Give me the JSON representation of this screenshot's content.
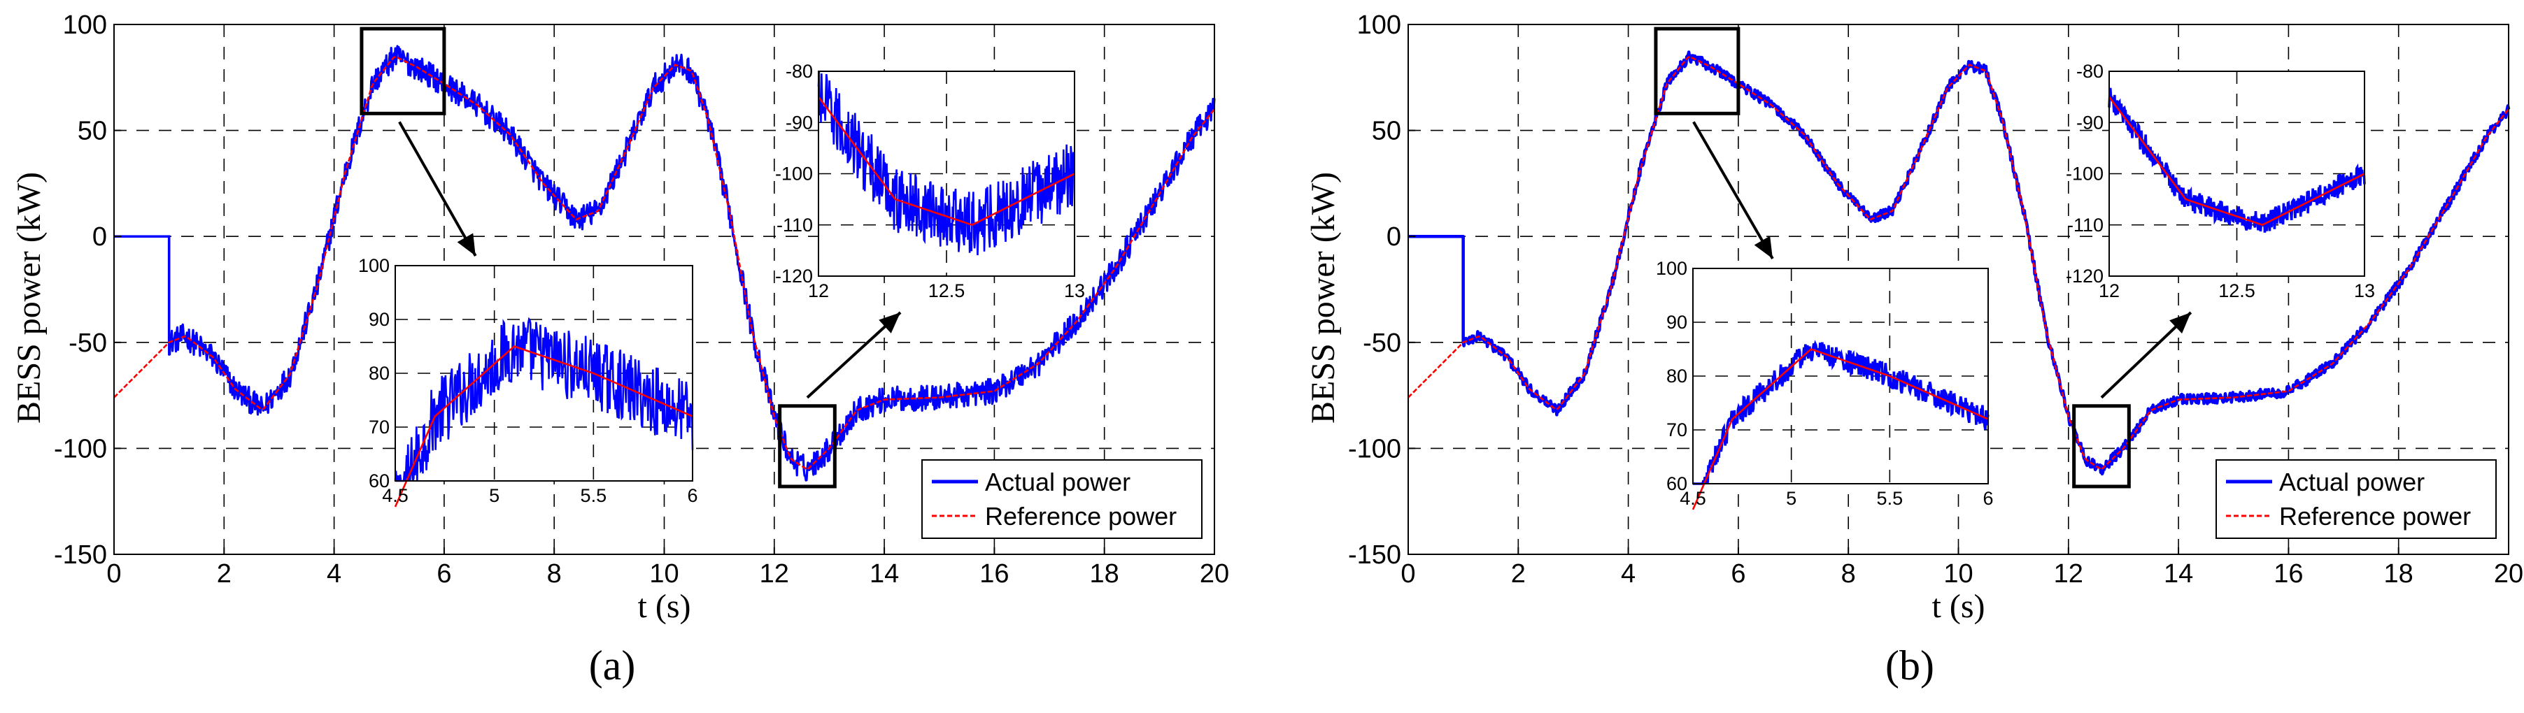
{
  "colors": {
    "actual": "#0000ff",
    "reference": "#ff0000",
    "annotation": "#000000"
  },
  "panels": [
    {
      "label": "(a)"
    },
    {
      "label": "(b)"
    }
  ],
  "chart_data": [
    {
      "type": "line",
      "panel": "(a)",
      "title": "",
      "xlabel": "t (s)",
      "ylabel": "BESS power (kW)",
      "xlim": [
        0,
        20
      ],
      "ylim": [
        -150,
        100
      ],
      "xticks": [
        0,
        2,
        4,
        6,
        8,
        10,
        12,
        14,
        16,
        18,
        20
      ],
      "yticks": [
        -150,
        -100,
        -50,
        0,
        50,
        100
      ],
      "grid": true,
      "legend": {
        "location": "bottom-right",
        "entries": [
          "Actual power",
          "Reference power"
        ]
      },
      "reference_curve": {
        "x": [
          0,
          0.5,
          1,
          1.3,
          1.8,
          2.2,
          2.7,
          3.2,
          3.7,
          4.2,
          4.7,
          5.1,
          5.5,
          6,
          6.6,
          7.2,
          7.8,
          8.4,
          8.8,
          9.3,
          9.8,
          10.2,
          10.5,
          10.8,
          11.2,
          11.6,
          12,
          12.3,
          12.6,
          13,
          13.5,
          14,
          15,
          16,
          16.8,
          17.5,
          18.2,
          19,
          19.6,
          20
        ],
        "y": [
          -76,
          -63,
          -50,
          -47,
          -57,
          -72,
          -82,
          -65,
          -23,
          30,
          72,
          85,
          80,
          72,
          62,
          48,
          25,
          8,
          12,
          40,
          70,
          81,
          78,
          55,
          10,
          -45,
          -85,
          -105,
          -110,
          -100,
          -82,
          -77,
          -76,
          -73,
          -60,
          -40,
          -15,
          20,
          47,
          60
        ]
      },
      "series": [
        {
          "name": "Actual power",
          "noise_kw": 6,
          "step": {
            "t_on": 1,
            "initial_kw": 0
          }
        },
        {
          "name": "Reference power"
        }
      ],
      "insets": [
        {
          "xlim": [
            4.5,
            6
          ],
          "ylim": [
            60,
            100
          ],
          "xticks": [
            4.5,
            5,
            5.5,
            6
          ],
          "xtick_labels": [
            "4.5",
            "5",
            "5.5",
            "6"
          ],
          "yticks": [
            60,
            70,
            80,
            90,
            100
          ],
          "zoom_box": {
            "x": [
              4.5,
              6
            ],
            "y": [
              58,
              98
            ]
          }
        },
        {
          "xlim": [
            12,
            13
          ],
          "ylim": [
            -120,
            -80
          ],
          "xticks": [
            12,
            12.5,
            13
          ],
          "xtick_labels": [
            "12",
            "12.5",
            "13"
          ],
          "yticks": [
            -120,
            -110,
            -100,
            -90,
            -80
          ],
          "zoom_box": {
            "x": [
              12.1,
              13.1
            ],
            "y": [
              -118,
              -80
            ]
          }
        }
      ]
    },
    {
      "type": "line",
      "panel": "(b)",
      "title": "",
      "xlabel": "t (s)",
      "ylabel": "BESS power (kW)",
      "xlim": [
        0,
        20
      ],
      "ylim": [
        -150,
        100
      ],
      "xticks": [
        0,
        2,
        4,
        6,
        8,
        10,
        12,
        14,
        16,
        18,
        20
      ],
      "yticks": [
        -150,
        -100,
        -50,
        0,
        50,
        100
      ],
      "grid": true,
      "legend": {
        "location": "bottom-right",
        "entries": [
          "Actual power",
          "Reference power"
        ]
      },
      "reference_curve": {
        "x": [
          0,
          0.5,
          1,
          1.3,
          1.8,
          2.2,
          2.7,
          3.2,
          3.7,
          4.2,
          4.7,
          5.1,
          5.5,
          6,
          6.6,
          7.2,
          7.8,
          8.4,
          8.8,
          9.3,
          9.8,
          10.2,
          10.5,
          10.8,
          11.2,
          11.6,
          12,
          12.3,
          12.6,
          13,
          13.5,
          14,
          15,
          16,
          16.8,
          17.5,
          18.2,
          19,
          19.6,
          20
        ],
        "y": [
          -76,
          -63,
          -50,
          -47,
          -57,
          -72,
          -82,
          -65,
          -23,
          30,
          72,
          85,
          80,
          72,
          62,
          48,
          25,
          8,
          12,
          40,
          70,
          81,
          78,
          55,
          10,
          -45,
          -85,
          -105,
          -110,
          -100,
          -82,
          -77,
          -76,
          -73,
          -60,
          -40,
          -15,
          20,
          47,
          60
        ]
      },
      "series": [
        {
          "name": "Actual power",
          "noise_kw": 2.5,
          "step": {
            "t_on": 1,
            "initial_kw": 0
          }
        },
        {
          "name": "Reference power"
        }
      ],
      "insets": [
        {
          "xlim": [
            4.5,
            6
          ],
          "ylim": [
            60,
            100
          ],
          "xticks": [
            4.5,
            5,
            5.5,
            6
          ],
          "xtick_labels": [
            "4.5",
            "5",
            "5.5",
            "6"
          ],
          "yticks": [
            60,
            70,
            80,
            90,
            100
          ],
          "zoom_box": {
            "x": [
              4.5,
              6
            ],
            "y": [
              58,
              98
            ]
          }
        },
        {
          "xlim": [
            12,
            13
          ],
          "ylim": [
            -120,
            -80
          ],
          "xticks": [
            12,
            12.5,
            13
          ],
          "xtick_labels": [
            "12",
            "12.5",
            "13"
          ],
          "yticks": [
            -120,
            -110,
            -100,
            -90,
            -80
          ],
          "zoom_box": {
            "x": [
              12.1,
              13.1
            ],
            "y": [
              -118,
              -80
            ]
          }
        }
      ]
    }
  ]
}
